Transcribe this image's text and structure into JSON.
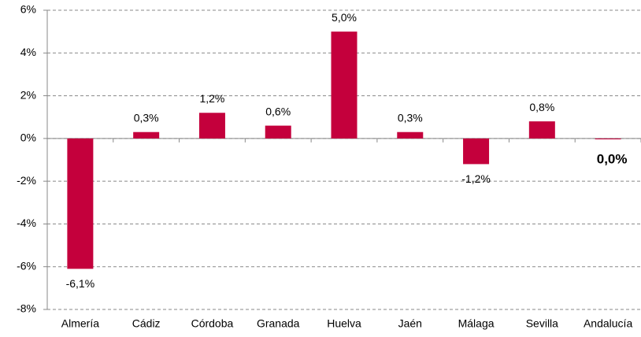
{
  "chart_data": {
    "type": "bar",
    "categories": [
      "Almería",
      "Cádiz",
      "Córdoba",
      "Granada",
      "Huelva",
      "Jaén",
      "Málaga",
      "Sevilla",
      "Andalucía"
    ],
    "values": [
      -6.1,
      0.3,
      1.2,
      0.6,
      5.0,
      0.3,
      -1.2,
      0.8,
      -0.04
    ],
    "value_labels": [
      "-6,1%",
      "0,3%",
      "1,2%",
      "0,6%",
      "5,0%",
      "0,3%",
      "-1,2%",
      "0,8%",
      "0,0%"
    ],
    "color": "#c4003c",
    "ylim": [
      -8,
      6
    ],
    "yticks": [
      {
        "value": -8,
        "label": "-8%"
      },
      {
        "value": -6,
        "label": "-6%"
      },
      {
        "value": -4,
        "label": "-4%"
      },
      {
        "value": -2,
        "label": "-2%"
      },
      {
        "value": 0,
        "label": "0%"
      },
      {
        "value": 2,
        "label": "2%"
      },
      {
        "value": 4,
        "label": "4%"
      },
      {
        "value": 6,
        "label": "6%"
      }
    ],
    "grid": true
  }
}
